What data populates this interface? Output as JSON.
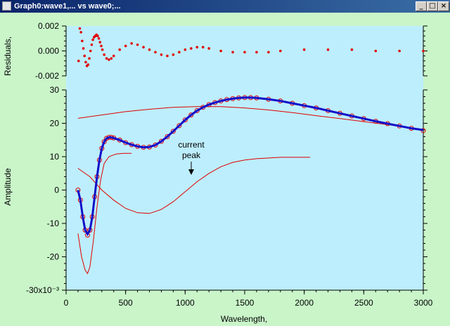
{
  "window": {
    "title": "Graph0:wave1,... vs wave0;...",
    "minimize_label": "_",
    "maximize_label": "□",
    "close_label": "×"
  },
  "chart_data": [
    {
      "type": "scatter",
      "panel": "top",
      "ylabel": "Residuals,",
      "ylim": [
        -0.002,
        0.002
      ],
      "yticks": [
        "0.002",
        "0.000",
        "-0.002"
      ],
      "series": [
        {
          "color": "#e00000",
          "marker": "dot",
          "points": [
            [
              105,
              -0.0008
            ],
            [
              115,
              0.0018
            ],
            [
              125,
              0.0015
            ],
            [
              135,
              0.0008
            ],
            [
              145,
              0.0002
            ],
            [
              155,
              -0.0004
            ],
            [
              165,
              -0.0009
            ],
            [
              175,
              -0.0012
            ],
            [
              185,
              -0.0011
            ],
            [
              195,
              -0.0006
            ],
            [
              205,
              0.0
            ],
            [
              215,
              0.0005
            ],
            [
              225,
              0.0009
            ],
            [
              235,
              0.0011
            ],
            [
              245,
              0.0012
            ],
            [
              255,
              0.0013
            ],
            [
              265,
              0.0012
            ],
            [
              275,
              0.001
            ],
            [
              285,
              0.0007
            ],
            [
              295,
              0.0004
            ],
            [
              305,
              0.0001
            ],
            [
              320,
              -0.0003
            ],
            [
              340,
              -0.0006
            ],
            [
              360,
              -0.0007
            ],
            [
              380,
              -0.0006
            ],
            [
              400,
              -0.0004
            ],
            [
              450,
              0.0001
            ],
            [
              500,
              0.0004
            ],
            [
              550,
              0.0006
            ],
            [
              600,
              0.0005
            ],
            [
              650,
              0.0003
            ],
            [
              700,
              0.0001
            ],
            [
              750,
              -0.0001
            ],
            [
              800,
              -0.0003
            ],
            [
              850,
              -0.0004
            ],
            [
              900,
              -0.0003
            ],
            [
              950,
              -0.0001
            ],
            [
              1000,
              0.0001
            ],
            [
              1050,
              0.0002
            ],
            [
              1100,
              0.0003
            ],
            [
              1150,
              0.0003
            ],
            [
              1200,
              0.0002
            ],
            [
              1300,
              0.0
            ],
            [
              1400,
              -0.0001
            ],
            [
              1500,
              -0.0001
            ],
            [
              1600,
              -0.0001
            ],
            [
              1700,
              -0.0001
            ],
            [
              1800,
              0.0
            ],
            [
              2000,
              0.0001
            ],
            [
              2200,
              0.0001
            ],
            [
              2400,
              0.0001
            ],
            [
              2600,
              0.0
            ],
            [
              2800,
              0.0
            ],
            [
              3000,
              0.0
            ]
          ]
        }
      ]
    },
    {
      "type": "line",
      "panel": "bottom",
      "xlabel": "Wavelength,",
      "ylabel": "Amplitude",
      "xlim": [
        0,
        3000
      ],
      "ylim": [
        -30,
        30
      ],
      "xticks": [
        "0",
        "500",
        "1000",
        "1500",
        "2000",
        "2500",
        "3000"
      ],
      "yticks": [
        "30",
        "20",
        "10",
        "0",
        "-10",
        "-20",
        "-30x10⁻³"
      ],
      "annotation": {
        "text": [
          "current",
          "peak"
        ],
        "x": 1060,
        "y": 10
      },
      "series": [
        {
          "role": "data",
          "color": "#e00000",
          "marker": "circle",
          "points": [
            [
              100,
              0
            ],
            [
              120,
              -3
            ],
            [
              140,
              -8
            ],
            [
              160,
              -12
            ],
            [
              180,
              -13.5
            ],
            [
              200,
              -12
            ],
            [
              220,
              -8
            ],
            [
              240,
              -2
            ],
            [
              260,
              4
            ],
            [
              280,
              9
            ],
            [
              300,
              12.5
            ],
            [
              320,
              14.5
            ],
            [
              340,
              15.5
            ],
            [
              360,
              15.8
            ],
            [
              380,
              15.8
            ],
            [
              400,
              15.6
            ],
            [
              450,
              15
            ],
            [
              500,
              14.2
            ],
            [
              550,
              13.6
            ],
            [
              600,
              13.1
            ],
            [
              650,
              12.8
            ],
            [
              700,
              12.9
            ],
            [
              750,
              13.5
            ],
            [
              800,
              14.6
            ],
            [
              850,
              16
            ],
            [
              900,
              17.6
            ],
            [
              950,
              19.3
            ],
            [
              1000,
              21
            ],
            [
              1050,
              22.5
            ],
            [
              1100,
              23.8
            ],
            [
              1150,
              24.8
            ],
            [
              1200,
              25.6
            ],
            [
              1250,
              26.2
            ],
            [
              1300,
              26.7
            ],
            [
              1350,
              27.1
            ],
            [
              1400,
              27.4
            ],
            [
              1450,
              27.6
            ],
            [
              1500,
              27.7
            ],
            [
              1550,
              27.7
            ],
            [
              1600,
              27.6
            ],
            [
              1700,
              27.2
            ],
            [
              1800,
              26.7
            ],
            [
              1900,
              26.0
            ],
            [
              2000,
              25.3
            ],
            [
              2100,
              24.6
            ],
            [
              2200,
              23.8
            ],
            [
              2300,
              23.0
            ],
            [
              2400,
              22.2
            ],
            [
              2500,
              21.4
            ],
            [
              2600,
              20.6
            ],
            [
              2700,
              19.9
            ],
            [
              2800,
              19.2
            ],
            [
              2900,
              18.5
            ],
            [
              3000,
              17.8
            ]
          ]
        },
        {
          "role": "fit",
          "color": "#1010c8",
          "points": [
            [
              100,
              0
            ],
            [
              120,
              -3
            ],
            [
              140,
              -8
            ],
            [
              160,
              -12
            ],
            [
              180,
              -13.2
            ],
            [
              200,
              -12
            ],
            [
              220,
              -8
            ],
            [
              240,
              -2
            ],
            [
              260,
              4
            ],
            [
              280,
              9
            ],
            [
              300,
              12.5
            ],
            [
              320,
              14.5
            ],
            [
              340,
              15.5
            ],
            [
              360,
              15.8
            ],
            [
              380,
              15.8
            ],
            [
              400,
              15.6
            ],
            [
              450,
              15
            ],
            [
              500,
              14.2
            ],
            [
              550,
              13.6
            ],
            [
              600,
              13.1
            ],
            [
              650,
              12.8
            ],
            [
              700,
              12.9
            ],
            [
              750,
              13.5
            ],
            [
              800,
              14.6
            ],
            [
              850,
              16
            ],
            [
              900,
              17.6
            ],
            [
              950,
              19.3
            ],
            [
              1000,
              21
            ],
            [
              1050,
              22.5
            ],
            [
              1100,
              23.8
            ],
            [
              1150,
              24.8
            ],
            [
              1200,
              25.6
            ],
            [
              1250,
              26.2
            ],
            [
              1300,
              26.7
            ],
            [
              1350,
              27.1
            ],
            [
              1400,
              27.4
            ],
            [
              1450,
              27.6
            ],
            [
              1500,
              27.7
            ],
            [
              1550,
              27.7
            ],
            [
              1600,
              27.6
            ],
            [
              1700,
              27.2
            ],
            [
              1800,
              26.7
            ],
            [
              1900,
              26.0
            ],
            [
              2000,
              25.3
            ],
            [
              2100,
              24.6
            ],
            [
              2200,
              23.8
            ],
            [
              2300,
              23.0
            ],
            [
              2400,
              22.2
            ],
            [
              2500,
              21.4
            ],
            [
              2600,
              20.6
            ],
            [
              2700,
              19.9
            ],
            [
              2800,
              19.2
            ],
            [
              2900,
              18.5
            ],
            [
              3000,
              18.0
            ]
          ]
        },
        {
          "role": "component",
          "color": "#e00000",
          "points": [
            [
              100,
              -13
            ],
            [
              130,
              -20
            ],
            [
              160,
              -24
            ],
            [
              180,
              -25
            ],
            [
              200,
              -23
            ],
            [
              230,
              -15
            ],
            [
              260,
              -5
            ],
            [
              290,
              3
            ],
            [
              320,
              8
            ],
            [
              360,
              10
            ],
            [
              420,
              10.8
            ],
            [
              480,
              11
            ],
            [
              550,
              11
            ]
          ]
        },
        {
          "role": "component",
          "color": "#e00000",
          "points": [
            [
              100,
              6.5
            ],
            [
              200,
              4
            ],
            [
              300,
              0
            ],
            [
              400,
              -3
            ],
            [
              500,
              -5.5
            ],
            [
              600,
              -6.8
            ],
            [
              700,
              -7
            ],
            [
              800,
              -5.8
            ],
            [
              900,
              -3.5
            ],
            [
              1000,
              -0.5
            ],
            [
              1100,
              2.5
            ],
            [
              1200,
              5
            ],
            [
              1300,
              7
            ],
            [
              1400,
              8.3
            ],
            [
              1500,
              9
            ],
            [
              1600,
              9.4
            ],
            [
              1700,
              9.6
            ],
            [
              1800,
              9.8
            ],
            [
              1900,
              9.8
            ],
            [
              2000,
              9.8
            ],
            [
              2050,
              9.8
            ]
          ]
        },
        {
          "role": "component",
          "color": "#e00000",
          "points": [
            [
              100,
              21.5
            ],
            [
              300,
              22.5
            ],
            [
              500,
              23.5
            ],
            [
              700,
              24.2
            ],
            [
              900,
              24.8
            ],
            [
              1100,
              25
            ],
            [
              1300,
              25
            ],
            [
              1500,
              24.6
            ],
            [
              1700,
              24
            ],
            [
              1900,
              23.2
            ],
            [
              2100,
              22.3
            ],
            [
              2300,
              21.4
            ],
            [
              2500,
              20.5
            ],
            [
              2700,
              19.6
            ],
            [
              2900,
              18.6
            ],
            [
              3000,
              17.8
            ]
          ]
        }
      ]
    }
  ]
}
